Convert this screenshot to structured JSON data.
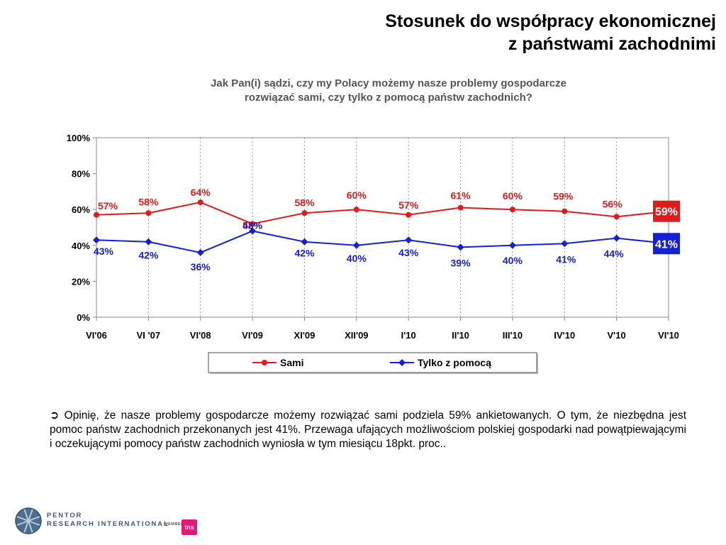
{
  "title": {
    "line1": "Stosunek do współpracy ekonomicznej",
    "line2": "z państwami zachodnimi"
  },
  "question": {
    "line1": "Jak Pan(i) sądzi, czy my Polacy możemy nasze problemy gospodarcze",
    "line2": "rozwiązać sami, czy tylko z pomocą  państw zachodnich?"
  },
  "chart_data": {
    "type": "line",
    "categories": [
      "VI'06",
      "VI '07",
      "VI'08",
      "VI'09",
      "XI'09",
      "XII'09",
      "I'10",
      "II'10",
      "III'10",
      "IV'10",
      "V'10",
      "VI'10"
    ],
    "y_ticks": [
      "0%",
      "20%",
      "40%",
      "60%",
      "80%",
      "100%"
    ],
    "ylim": [
      0,
      100
    ],
    "grid": "vertical dotted",
    "legend_position": "bottom",
    "series": [
      {
        "name": "Sami",
        "color": "#e01b1b",
        "values": [
          57,
          58,
          64,
          52,
          58,
          60,
          57,
          61,
          60,
          59,
          56,
          59
        ],
        "labels": [
          "57%",
          "58%",
          "64%",
          "52%",
          "58%",
          "60%",
          "57%",
          "61%",
          "60%",
          "59%",
          "56%",
          "59%"
        ]
      },
      {
        "name": "Tylko z pomocą",
        "color": "#1420d6",
        "values": [
          43,
          42,
          36,
          48,
          42,
          40,
          43,
          39,
          40,
          41,
          44,
          41
        ],
        "labels": [
          "43%",
          "42%",
          "36%",
          "48%",
          "42%",
          "40%",
          "43%",
          "39%",
          "40%",
          "41%",
          "44%",
          "41%"
        ]
      }
    ]
  },
  "note": {
    "arrow_icon": "➲",
    "text": "Opinię, że nasze problemy gospodarcze możemy rozwiązać sami podziela 59% ankietowanych. O tym, że niezbędna jest pomoc państw zachodnich przekonanych jest 41%. Przewaga ufających możliwościom polskiej gospodarki nad powątpiewającymi i oczekującymi pomocy państw zachodnich wyniosła w tym miesiącu 18pkt. proc.."
  },
  "logo": {
    "line1": "PENTOR",
    "line2": "RESEARCH INTERNATIONAL",
    "member": "MEMBER OF",
    "badge": "tns"
  }
}
